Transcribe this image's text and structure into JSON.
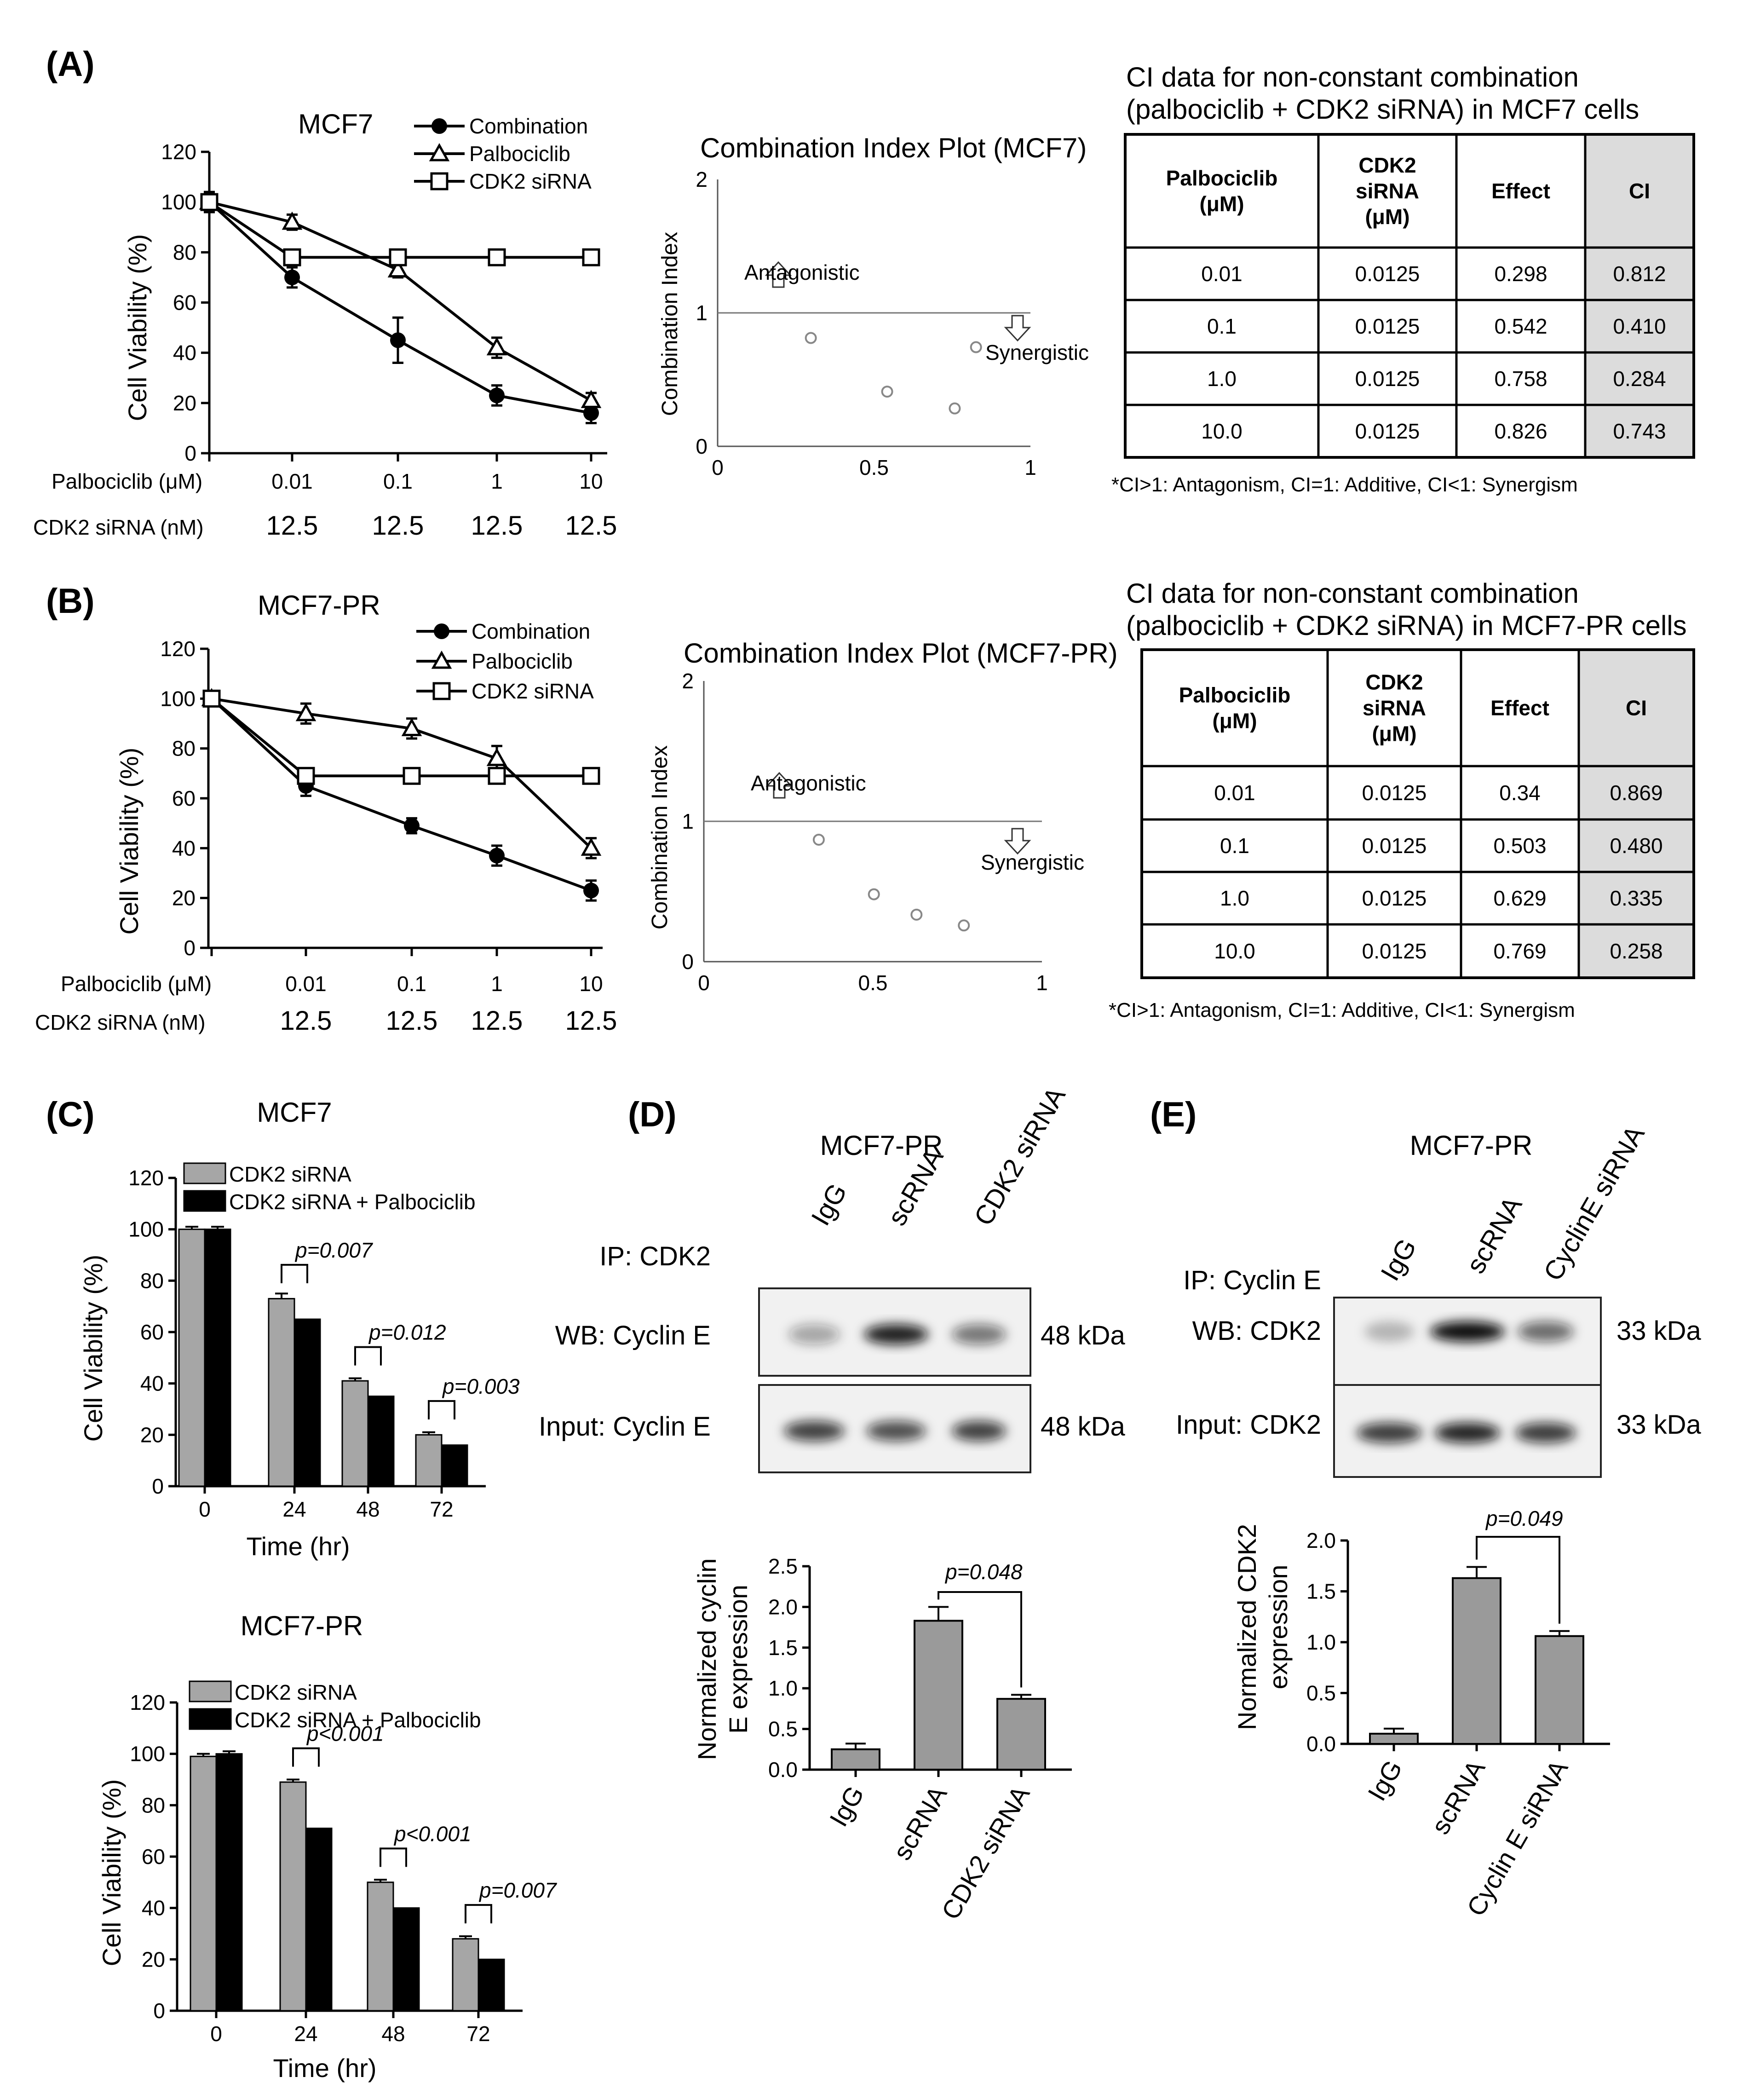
{
  "panels": {
    "A": "(A)",
    "B": "(B)",
    "C": "(C)",
    "D": "(D)",
    "E": "(E)"
  },
  "line_charts": [
    {
      "id": "A",
      "title": "MCF7",
      "ylabel": "Cell Viability (%)",
      "yticks": [
        "0",
        "20",
        "40",
        "60",
        "80",
        "100",
        "120"
      ],
      "row_label_1": "Palbociclib (μM)",
      "row_label_2": "CDK2 siRNA (nM)",
      "xticks": [
        "0.01",
        "0.1",
        "1",
        "10"
      ],
      "xticks2": [
        "12.5",
        "12.5",
        "12.5",
        "12.5"
      ],
      "legend": [
        "Combination",
        "Palbociclib",
        "CDK2 siRNA"
      ]
    },
    {
      "id": "B",
      "title": "MCF7-PR",
      "ylabel": "Cell Viability (%)",
      "yticks": [
        "0",
        "20",
        "40",
        "60",
        "80",
        "100",
        "120"
      ],
      "row_label_1": "Palbociclib  (μM)",
      "row_label_2": "CDK2 siRNA (nM)",
      "xticks": [
        "0.01",
        "0.1",
        "1",
        "10"
      ],
      "xticks2": [
        "12.5",
        "12.5",
        "12.5",
        "12.5"
      ],
      "legend": [
        "Combination",
        "Palbociclib",
        "CDK2 siRNA"
      ]
    }
  ],
  "ci_plots": [
    {
      "id": "A",
      "title": "Combination Index Plot (MCF7)",
      "ylabel": "Combination  Index",
      "yticks": [
        "0",
        "1",
        "2"
      ],
      "xticks": [
        "0",
        "0.5",
        "1"
      ],
      "antagonistic": "Antagonistic",
      "synergistic": "Synergistic"
    },
    {
      "id": "B",
      "title": "Combination Index Plot (MCF7-PR)",
      "ylabel": "Combination  Index",
      "yticks": [
        "0",
        "1",
        "2"
      ],
      "xticks": [
        "0",
        "0.5",
        "1"
      ],
      "antagonistic": "Antagonistic",
      "synergistic": "Synergistic"
    }
  ],
  "tables": [
    {
      "id": "A",
      "caption_1": "CI data for non-constant combination",
      "caption_2": "(palbociclib + CDK2 siRNA) in MCF7 cells",
      "headers": [
        [
          "Palbociclib",
          "(μM)"
        ],
        [
          "CDK2",
          "siRNA",
          "(μM)"
        ],
        [
          "Effect"
        ],
        [
          "CI"
        ]
      ],
      "rows": [
        [
          "0.01",
          "0.0125",
          "0.298",
          "0.812"
        ],
        [
          "0.1",
          "0.0125",
          "0.542",
          "0.410"
        ],
        [
          "1.0",
          "0.0125",
          "0.758",
          "0.284"
        ],
        [
          "10.0",
          "0.0125",
          "0.826",
          "0.743"
        ]
      ],
      "note": "*CI>1: Antagonism,  CI=1: Additive,  CI<1: Synergism"
    },
    {
      "id": "B",
      "caption_1": "CI data for non-constant combination",
      "caption_2": "(palbociclib + CDK2 siRNA) in MCF7-PR cells",
      "headers": [
        [
          "Palbociclib",
          "(μM)"
        ],
        [
          "CDK2",
          "siRNA",
          "(μM)"
        ],
        [
          "Effect"
        ],
        [
          "CI"
        ]
      ],
      "rows": [
        [
          "0.01",
          "0.0125",
          "0.34",
          "0.869"
        ],
        [
          "0.1",
          "0.0125",
          "0.503",
          "0.480"
        ],
        [
          "1.0",
          "0.0125",
          "0.629",
          "0.335"
        ],
        [
          "10.0",
          "0.0125",
          "0.769",
          "0.258"
        ]
      ],
      "note": "*CI>1: Antagonism,  CI=1: Additive,  CI<1: Synergism"
    }
  ],
  "time_charts": [
    {
      "id": "C1",
      "title": "MCF7",
      "ylabel": "Cell Viability (%)",
      "xlabel": "Time (hr)",
      "yticks": [
        "0",
        "20",
        "40",
        "60",
        "80",
        "100",
        "120"
      ],
      "xticks": [
        "0",
        "24",
        "48",
        "72"
      ],
      "legend": [
        "CDK2 siRNA",
        "CDK2 siRNA + Palbociclib"
      ],
      "pvalues": [
        "p=0.007",
        "p=0.012",
        "p=0.003"
      ]
    },
    {
      "id": "C2",
      "title": "MCF7-PR",
      "ylabel": "Cell Viability (%)",
      "xlabel": "Time (hr)",
      "yticks": [
        "0",
        "20",
        "40",
        "60",
        "80",
        "100",
        "120"
      ],
      "xticks": [
        "0",
        "24",
        "48",
        "72"
      ],
      "legend": [
        "CDK2 siRNA",
        "CDK2 siRNA + Palbociclib"
      ],
      "pvalues": [
        "p<0.001",
        "p<0.001",
        "p=0.007"
      ]
    }
  ],
  "blots": [
    {
      "id": "D",
      "title": "MCF7-PR",
      "ip_label": "IP: CDK2",
      "lanes": [
        "IgG",
        "scRNA",
        "CDK2 siRNA"
      ],
      "wb_label": "WB: Cyclin E",
      "wb_kda": "48 kDa",
      "input_label": "Input: Cyclin E",
      "input_kda": "48 kDa"
    },
    {
      "id": "E",
      "title": "MCF7-PR",
      "ip_label": "IP: Cyclin E",
      "lanes": [
        "IgG",
        "scRNA",
        "CyclinE siRNA"
      ],
      "wb_label": "WB: CDK2",
      "wb_kda": "33 kDa",
      "input_label": "Input: CDK2",
      "input_kda": "33 kDa"
    }
  ],
  "quant_charts": [
    {
      "id": "D",
      "ylabel_1": "Normalized cyclin",
      "ylabel_2": "E expression",
      "yticks": [
        "0.0",
        "0.5",
        "1.0",
        "1.5",
        "2.0",
        "2.5"
      ],
      "categories": [
        "IgG",
        "scRNA",
        "CDK2 siRNA"
      ],
      "pvalue": "p=0.048"
    },
    {
      "id": "E",
      "ylabel_1": "Normalized CDK2",
      "ylabel_2": "expression",
      "yticks": [
        "0.0",
        "0.5",
        "1.0",
        "1.5",
        "2.0"
      ],
      "categories": [
        "IgG",
        "scRNA",
        "Cyclin E siRNA"
      ],
      "pvalue": "p=0.049"
    }
  ],
  "chart_data": [
    {
      "type": "line",
      "id": "A-viability",
      "title": "MCF7",
      "x": [
        "0",
        "0.01",
        "0.1",
        "1",
        "10"
      ],
      "ylim": [
        0,
        120
      ],
      "ylabel": "Cell Viability (%)",
      "series": [
        {
          "name": "Combination",
          "values": [
            100,
            70,
            45,
            23,
            16
          ],
          "errors": [
            4,
            4,
            9,
            4,
            4
          ]
        },
        {
          "name": "Palbociclib",
          "values": [
            100,
            92,
            73,
            42,
            21
          ],
          "errors": [
            4,
            3,
            3,
            4,
            3
          ]
        },
        {
          "name": "CDK2 siRNA",
          "values": [
            100,
            78,
            78,
            78,
            78
          ],
          "errors": [
            4,
            0,
            0,
            0,
            0
          ]
        }
      ]
    },
    {
      "type": "scatter",
      "id": "A-ci",
      "title": "Combination Index Plot (MCF7)",
      "xlim": [
        0,
        1
      ],
      "ylim": [
        0,
        2
      ],
      "x": [
        0.298,
        0.542,
        0.758,
        0.826
      ],
      "y": [
        0.812,
        0.41,
        0.284,
        0.743
      ],
      "reference_line": 1
    },
    {
      "type": "line",
      "id": "B-viability",
      "title": "MCF7-PR",
      "x": [
        "0",
        "0.01",
        "0.1",
        "1",
        "10"
      ],
      "ylim": [
        0,
        120
      ],
      "ylabel": "Cell Viability (%)",
      "series": [
        {
          "name": "Combination",
          "values": [
            100,
            65,
            49,
            37,
            23
          ],
          "errors": [
            3,
            4,
            3,
            4,
            4
          ]
        },
        {
          "name": "Palbociclib",
          "values": [
            100,
            94,
            88,
            76,
            40
          ],
          "errors": [
            3,
            4,
            4,
            5,
            4
          ]
        },
        {
          "name": "CDK2 siRNA",
          "values": [
            100,
            69,
            69,
            69,
            69
          ],
          "errors": [
            3,
            0,
            0,
            0,
            0
          ]
        }
      ]
    },
    {
      "type": "scatter",
      "id": "B-ci",
      "title": "Combination Index Plot (MCF7-PR)",
      "xlim": [
        0,
        1
      ],
      "ylim": [
        0,
        2
      ],
      "x": [
        0.34,
        0.503,
        0.629,
        0.769
      ],
      "y": [
        0.869,
        0.48,
        0.335,
        0.258
      ],
      "reference_line": 1
    },
    {
      "type": "bar",
      "id": "C-MCF7",
      "title": "MCF7",
      "categories": [
        "0",
        "24",
        "48",
        "72"
      ],
      "ylim": [
        0,
        120
      ],
      "series": [
        {
          "name": "CDK2 siRNA",
          "values": [
            100,
            73,
            41,
            20
          ],
          "errors": [
            1,
            2,
            1,
            1
          ]
        },
        {
          "name": "CDK2 siRNA + Palbociclib",
          "values": [
            100,
            65,
            35,
            16
          ],
          "errors": [
            1,
            0,
            0,
            0
          ]
        }
      ]
    },
    {
      "type": "bar",
      "id": "C-MCF7-PR",
      "title": "MCF7-PR",
      "categories": [
        "0",
        "24",
        "48",
        "72"
      ],
      "ylim": [
        0,
        120
      ],
      "series": [
        {
          "name": "CDK2 siRNA",
          "values": [
            99,
            89,
            50,
            28
          ],
          "errors": [
            1,
            1,
            1,
            1
          ]
        },
        {
          "name": "CDK2 siRNA + Palbociclib",
          "values": [
            100,
            71,
            40,
            20
          ],
          "errors": [
            1,
            0,
            0,
            0
          ]
        }
      ]
    },
    {
      "type": "bar",
      "id": "D-quant",
      "categories": [
        "IgG",
        "scRNA",
        "CDK2 siRNA"
      ],
      "values": [
        0.25,
        1.83,
        0.87
      ],
      "errors": [
        0.07,
        0.17,
        0.05
      ],
      "ylim": [
        0,
        2.5
      ]
    },
    {
      "type": "bar",
      "id": "E-quant",
      "categories": [
        "IgG",
        "scRNA",
        "Cyclin E siRNA"
      ],
      "values": [
        0.1,
        1.63,
        1.06
      ],
      "errors": [
        0.05,
        0.11,
        0.05
      ],
      "ylim": [
        0,
        2.0
      ]
    }
  ]
}
